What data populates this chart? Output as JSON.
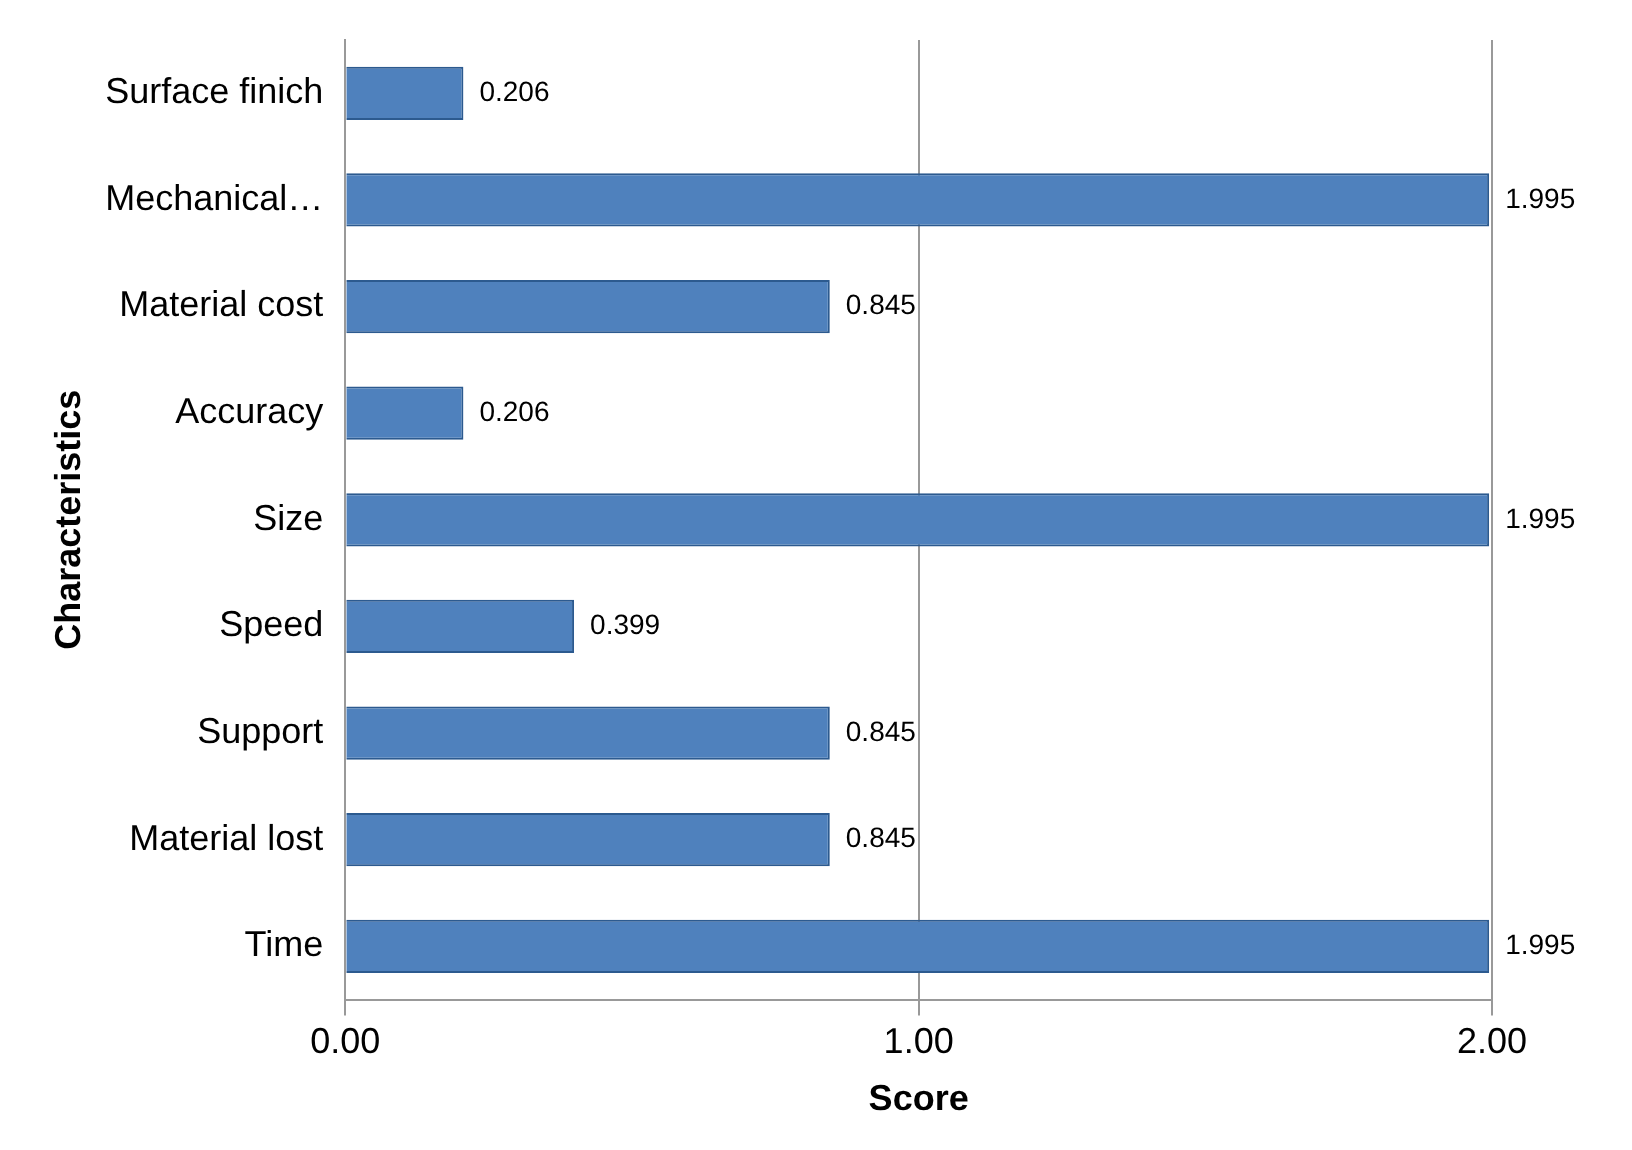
{
  "chart_data": {
    "type": "bar",
    "orientation": "horizontal",
    "xlabel": "Score",
    "ylabel": "Characteristics",
    "categories": [
      "Surface finich",
      "Mechanical…",
      "Material cost",
      "Accuracy",
      "Size",
      "Speed",
      "Support",
      "Material lost",
      "Time"
    ],
    "values": [
      0.206,
      1.995,
      0.845,
      0.206,
      1.995,
      0.399,
      0.845,
      0.845,
      1.995
    ],
    "color": "#4f81bd",
    "xlim": [
      0,
      2
    ],
    "xticks": [
      {
        "value": 0,
        "label": "0.00"
      },
      {
        "value": 1,
        "label": "1.00"
      },
      {
        "value": 2,
        "label": "2.00"
      }
    ],
    "grid": "x",
    "legend": false,
    "data_labels": true
  }
}
